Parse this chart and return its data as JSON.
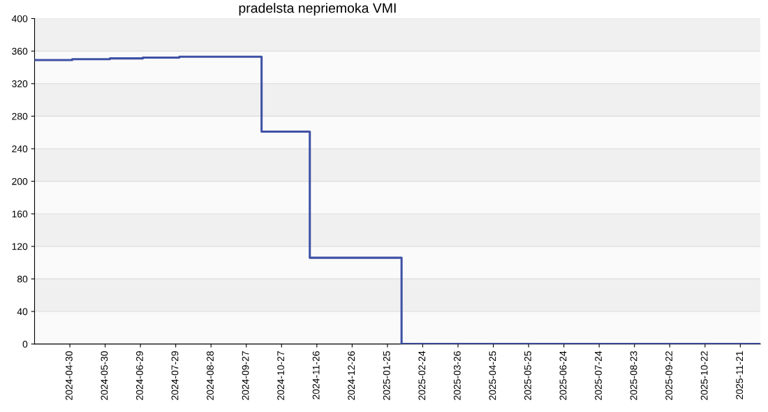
{
  "chart_data": {
    "type": "step",
    "title": "pradelsta nepriemoka VMI",
    "x": [
      "2024-03-31",
      "2024-05-02",
      "2024-06-03",
      "2024-07-01",
      "2024-08-01",
      "2024-09-03",
      "2024-10-10",
      "2024-11-20",
      "2025-02-06",
      "2025-12-08"
    ],
    "series": [
      {
        "color": "#3f51a5",
        "values": [
          349,
          350,
          351,
          352,
          353,
          353,
          261,
          106,
          0,
          0
        ]
      }
    ],
    "xlim": [
      "2024-03-31",
      "2025-12-08"
    ],
    "xticks": [
      "2024-04-30",
      "2024-05-30",
      "2024-06-29",
      "2024-07-29",
      "2024-08-28",
      "2024-09-27",
      "2024-10-27",
      "2024-11-26",
      "2024-12-26",
      "2025-01-25",
      "2025-02-24",
      "2025-03-26",
      "2025-04-25",
      "2025-05-25",
      "2025-06-24",
      "2025-07-24",
      "2025-08-23",
      "2025-09-22",
      "2025-10-22",
      "2025-11-21"
    ],
    "ylim": [
      0,
      400
    ],
    "yticks": [
      0,
      40,
      80,
      120,
      160,
      200,
      240,
      280,
      320,
      360,
      400
    ],
    "grid": "y",
    "marker": "none",
    "line_style": "solid"
  }
}
